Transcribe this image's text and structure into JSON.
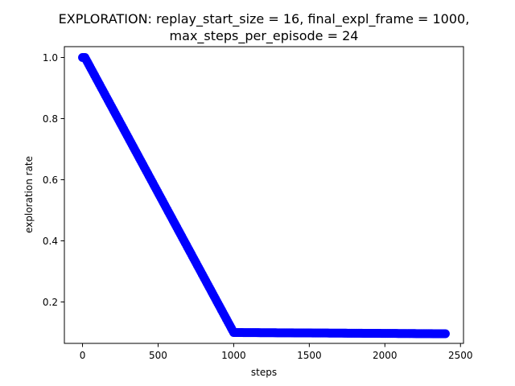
{
  "chart_data": {
    "type": "scatter",
    "title_lines": [
      "EXPLORATION: replay_start_size = 16, final_expl_frame = 1000,",
      "max_steps_per_episode = 24"
    ],
    "xlabel": "steps",
    "ylabel": "exploration rate",
    "xlim": [
      -120,
      2520
    ],
    "ylim": [
      0.0645,
      1.0355
    ],
    "x_ticks": [
      0,
      500,
      1000,
      1500,
      2000,
      2500
    ],
    "x_tick_labels": [
      "0",
      "500",
      "1000",
      "1500",
      "2000",
      "2500"
    ],
    "y_ticks": [
      0.2,
      0.4,
      0.6,
      0.8,
      1.0
    ],
    "y_tick_labels": [
      "0.2",
      "0.4",
      "0.6",
      "0.8",
      "1.0"
    ],
    "grid": false,
    "marker_color": "#0000ff",
    "series": [
      {
        "segments": [
          {
            "x_start": 0,
            "x_end": 16,
            "step": 8,
            "y_start": 1.0,
            "y_end": 1.0
          },
          {
            "x_start": 24,
            "x_end": 1000,
            "step": 8,
            "y_start": 0.9928,
            "y_end": 0.1
          },
          {
            "x_start": 1008,
            "x_end": 2400,
            "step": 8,
            "y_start": 0.1,
            "y_end": 0.096
          }
        ]
      }
    ]
  }
}
